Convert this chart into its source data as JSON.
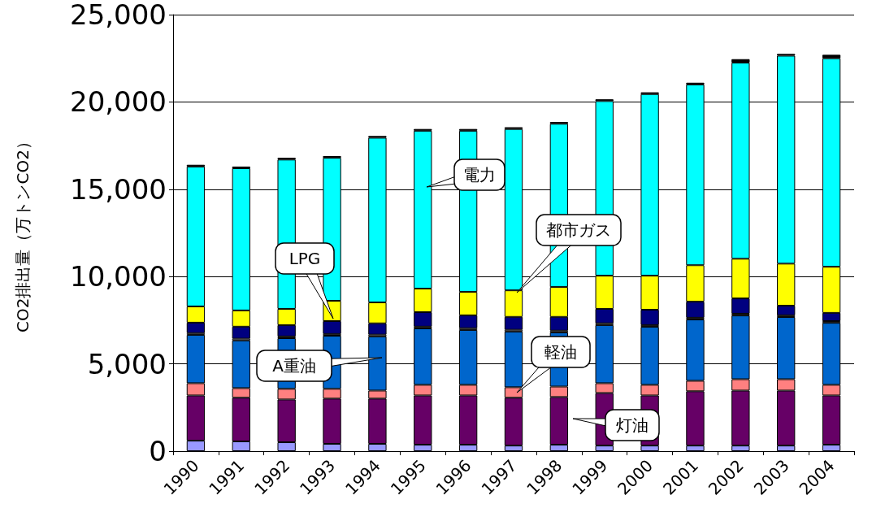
{
  "chart_data": {
    "type": "bar",
    "stacked": true,
    "ylabel": "CO2排出量（万トンCO2）",
    "categories": [
      "1990",
      "1991",
      "1992",
      "1993",
      "1994",
      "1995",
      "1996",
      "1997",
      "1998",
      "1999",
      "2000",
      "2001",
      "2002",
      "2003",
      "2004"
    ],
    "series": [
      {
        "color": "#9999ff",
        "values": [
          600,
          560,
          510,
          420,
          420,
          370,
          370,
          320,
          370,
          320,
          320,
          320,
          320,
          320,
          370
        ]
      },
      {
        "color": "#660066",
        "values": [
          2590,
          2500,
          2450,
          2590,
          2590,
          2820,
          2820,
          2740,
          2730,
          3010,
          2870,
          3110,
          3150,
          3150,
          2820
        ]
      },
      {
        "color": "#ff8080",
        "values": [
          700,
          550,
          610,
          560,
          460,
          610,
          610,
          600,
          600,
          560,
          610,
          600,
          650,
          650,
          610
        ]
      },
      {
        "color": "#0066cc",
        "values": [
          2770,
          2730,
          2900,
          3040,
          3100,
          3230,
          3140,
          3190,
          3100,
          3330,
          3320,
          3510,
          3650,
          3560,
          3550
        ]
      },
      {
        "color": "#ffffff",
        "values": [
          100,
          100,
          100,
          100,
          100,
          100,
          100,
          100,
          100,
          100,
          100,
          100,
          100,
          100,
          100
        ]
      },
      {
        "color": "#000080",
        "values": [
          600,
          690,
          650,
          740,
          650,
          830,
          740,
          740,
          790,
          830,
          880,
          920,
          880,
          550,
          470
        ]
      },
      {
        "color": "#ffff00",
        "values": [
          930,
          930,
          930,
          1160,
          1200,
          1350,
          1340,
          1520,
          1710,
          1900,
          1950,
          2090,
          2270,
          2410,
          2640
        ]
      },
      {
        "color": "#00ffff",
        "values": [
          8010,
          8140,
          8550,
          8190,
          9430,
          9040,
          9230,
          9240,
          9350,
          10000,
          10400,
          10350,
          11230,
          11910,
          11940
        ]
      },
      {
        "color": "#000000",
        "values": [
          100,
          100,
          100,
          100,
          100,
          100,
          100,
          100,
          100,
          100,
          100,
          100,
          200,
          100,
          200
        ]
      }
    ],
    "ylim": [
      0,
      25000
    ],
    "yticks": [
      {
        "value": 0,
        "label": "0"
      },
      {
        "value": 5000,
        "label": "5,000"
      },
      {
        "value": 10000,
        "label": "10,000"
      },
      {
        "value": 15000,
        "label": "15,000"
      },
      {
        "value": 20000,
        "label": "20,000"
      },
      {
        "value": 25000,
        "label": "25,000"
      }
    ],
    "grid": "y",
    "annotations": [
      "電力",
      "都市ガス",
      "LPG",
      "A重油",
      "軽油",
      "灯油"
    ]
  }
}
